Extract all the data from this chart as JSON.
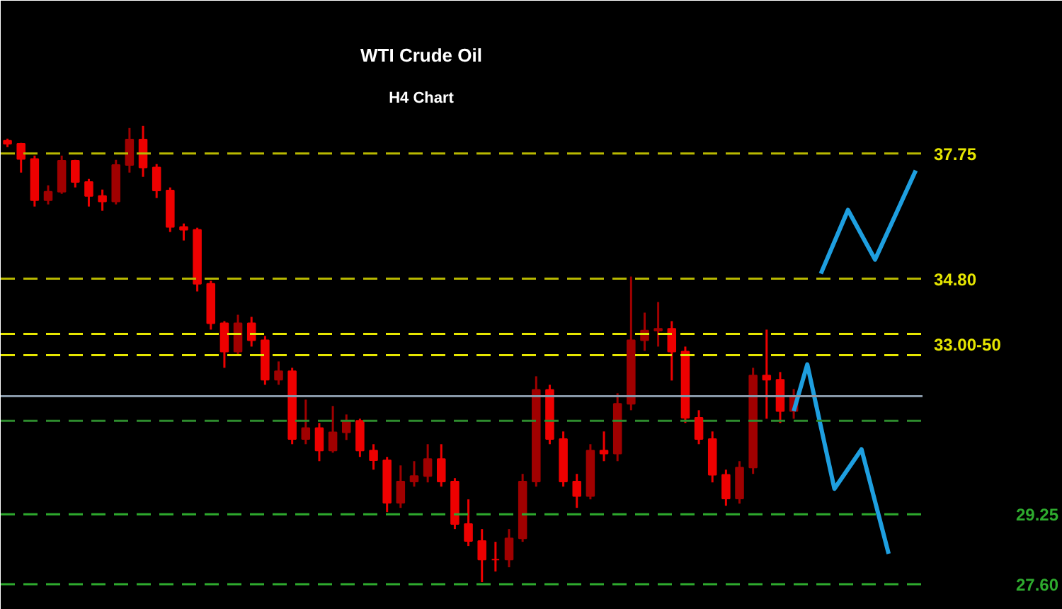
{
  "chart_data": {
    "type": "candlestick",
    "title": "WTI Crude Oil",
    "subtitle": "H4 Chart",
    "categories": [
      null,
      null,
      null,
      null,
      null,
      null,
      null,
      null,
      null,
      null,
      null,
      null,
      null,
      null,
      null,
      null,
      null,
      null,
      null,
      null,
      null,
      null,
      null,
      null,
      null,
      null,
      null,
      null,
      null,
      null,
      null,
      null,
      null,
      null,
      null,
      null,
      null,
      null,
      null,
      null,
      null,
      null,
      null,
      null,
      null,
      null,
      null,
      null,
      null,
      null,
      null,
      null,
      null,
      null,
      null,
      null,
      null,
      null,
      null,
      null,
      null,
      null,
      null,
      null,
      null,
      null,
      null,
      null
    ],
    "ohlc": [
      [
        38.05,
        38.1,
        37.9,
        37.98
      ],
      [
        37.98,
        38.0,
        37.3,
        37.62
      ],
      [
        37.62,
        37.7,
        36.5,
        36.65
      ],
      [
        36.65,
        37.0,
        36.55,
        36.85
      ],
      [
        36.85,
        37.7,
        36.8,
        37.58
      ],
      [
        37.58,
        37.6,
        36.95,
        37.08
      ],
      [
        37.08,
        37.15,
        36.5,
        36.75
      ],
      [
        36.75,
        36.9,
        36.4,
        36.62
      ],
      [
        36.62,
        37.6,
        36.55,
        37.48
      ],
      [
        37.48,
        38.35,
        37.3,
        38.08
      ],
      [
        38.08,
        38.4,
        37.2,
        37.42
      ],
      [
        37.42,
        37.5,
        36.7,
        36.88
      ],
      [
        36.88,
        36.95,
        35.9,
        36.02
      ],
      [
        36.02,
        36.1,
        35.7,
        35.95
      ],
      [
        35.95,
        36.0,
        34.5,
        34.68
      ],
      [
        34.68,
        34.75,
        33.6,
        33.75
      ],
      [
        33.75,
        33.8,
        32.7,
        33.08
      ],
      [
        33.08,
        33.95,
        33.0,
        33.75
      ],
      [
        33.75,
        33.9,
        33.2,
        33.35
      ],
      [
        33.35,
        33.45,
        32.3,
        32.42
      ],
      [
        32.42,
        32.85,
        32.3,
        32.62
      ],
      [
        32.62,
        32.7,
        30.9,
        31.02
      ],
      [
        31.02,
        31.95,
        30.9,
        31.28
      ],
      [
        31.28,
        31.4,
        30.5,
        30.75
      ],
      [
        30.75,
        31.8,
        30.7,
        31.18
      ],
      [
        31.18,
        31.6,
        31.0,
        31.45
      ],
      [
        31.45,
        31.5,
        30.6,
        30.75
      ],
      [
        30.75,
        30.9,
        30.3,
        30.52
      ],
      [
        30.52,
        30.6,
        29.3,
        29.52
      ],
      [
        29.52,
        30.4,
        29.4,
        30.02
      ],
      [
        30.02,
        30.5,
        29.9,
        30.15
      ],
      [
        30.15,
        30.9,
        30.0,
        30.55
      ],
      [
        30.55,
        30.9,
        29.9,
        30.02
      ],
      [
        30.02,
        30.1,
        28.9,
        29.02
      ],
      [
        29.02,
        29.6,
        28.5,
        28.62
      ],
      [
        28.62,
        28.9,
        27.65,
        28.18
      ],
      [
        28.18,
        28.6,
        27.9,
        28.18
      ],
      [
        28.18,
        28.9,
        28.0,
        28.68
      ],
      [
        28.68,
        30.2,
        28.6,
        30.02
      ],
      [
        30.02,
        32.5,
        29.9,
        32.18
      ],
      [
        32.18,
        32.3,
        30.9,
        31.02
      ],
      [
        31.02,
        31.2,
        29.9,
        30.02
      ],
      [
        30.02,
        30.2,
        29.4,
        29.68
      ],
      [
        29.68,
        30.9,
        29.6,
        30.75
      ],
      [
        30.75,
        31.2,
        30.5,
        30.68
      ],
      [
        30.68,
        32.1,
        30.5,
        31.85
      ],
      [
        31.85,
        34.85,
        31.7,
        33.35
      ],
      [
        33.35,
        34.0,
        33.1,
        33.58
      ],
      [
        33.58,
        34.25,
        33.2,
        33.62
      ],
      [
        33.62,
        33.8,
        32.4,
        33.08
      ],
      [
        33.08,
        33.2,
        31.4,
        31.52
      ],
      [
        31.52,
        31.7,
        30.9,
        31.02
      ],
      [
        31.02,
        31.2,
        30.0,
        30.18
      ],
      [
        30.18,
        30.3,
        29.45,
        29.62
      ],
      [
        29.62,
        30.5,
        29.5,
        30.35
      ],
      [
        30.35,
        32.7,
        30.2,
        32.52
      ],
      [
        32.52,
        33.6,
        31.5,
        32.42
      ],
      [
        32.42,
        32.6,
        31.4,
        31.68
      ],
      [
        31.68,
        32.2,
        31.5,
        32.02
      ],
      null,
      null,
      null,
      null,
      null,
      null,
      null,
      null,
      null
    ],
    "colors": [
      "#ee0000",
      "#ee0000",
      "#ee0000",
      "#a00000",
      "#a00000",
      "#ee0000",
      "#ee0000",
      "#ee0000",
      "#a00000",
      "#a00000",
      "#ee0000",
      "#ee0000",
      "#ee0000",
      "#ee0000",
      "#ee0000",
      "#ee0000",
      "#ee0000",
      "#a00000",
      "#ee0000",
      "#ee0000",
      "#a00000",
      "#ee0000",
      "#a00000",
      "#ee0000",
      "#a00000",
      "#a00000",
      "#ee0000",
      "#ee0000",
      "#ee0000",
      "#a00000",
      "#a00000",
      "#a00000",
      "#ee0000",
      "#ee0000",
      "#ee0000",
      "#ee0000",
      "#ee0000",
      "#a00000",
      "#a00000",
      "#a00000",
      "#ee0000",
      "#ee0000",
      "#ee0000",
      "#a00000",
      "#ee0000",
      "#a00000",
      "#a00000",
      "#a00000",
      "#a00000",
      "#ee0000",
      "#ee0000",
      "#ee0000",
      "#ee0000",
      "#ee0000",
      "#a00000",
      "#a00000",
      "#ee0000",
      "#ee0000",
      "#a00000",
      null,
      null,
      null,
      null,
      null,
      null,
      null,
      null,
      null
    ],
    "series": [
      {
        "type": "line",
        "color": "#1e9fe0",
        "values": [
          null,
          null,
          null,
          null,
          null,
          null,
          null,
          null,
          null,
          null,
          null,
          null,
          null,
          null,
          null,
          null,
          null,
          null,
          null,
          null,
          null,
          null,
          null,
          null,
          null,
          null,
          null,
          null,
          null,
          null,
          null,
          null,
          null,
          null,
          null,
          null,
          null,
          null,
          null,
          null,
          null,
          null,
          null,
          null,
          null,
          null,
          null,
          null,
          null,
          null,
          null,
          null,
          null,
          null,
          null,
          null,
          null,
          null,
          null,
          null,
          34.92,
          null,
          36.42,
          null,
          35.25,
          null,
          null,
          37.35
        ]
      },
      {
        "type": "line",
        "color": "#1e9fe0",
        "values": [
          null,
          null,
          null,
          null,
          null,
          null,
          null,
          null,
          null,
          null,
          null,
          null,
          null,
          null,
          null,
          null,
          null,
          null,
          null,
          null,
          null,
          null,
          null,
          null,
          null,
          null,
          null,
          null,
          null,
          null,
          null,
          null,
          null,
          null,
          null,
          null,
          null,
          null,
          null,
          null,
          null,
          null,
          null,
          null,
          null,
          null,
          null,
          null,
          null,
          null,
          null,
          null,
          null,
          null,
          null,
          null,
          null,
          null,
          31.68,
          32.78,
          null,
          29.85,
          null,
          30.78,
          null,
          28.32,
          null,
          null
        ]
      }
    ],
    "ref_lines": [
      {
        "axis": "y",
        "value": 37.75,
        "color": "#b8b800",
        "line_style": "dashed"
      },
      {
        "axis": "y",
        "value": 34.8,
        "color": "#b8b800",
        "line_style": "dashed"
      },
      {
        "axis": "y",
        "value": 33.5,
        "color": "#e6e600",
        "line_style": "dashed"
      },
      {
        "axis": "y",
        "value": 33.0,
        "color": "#e6e600",
        "line_style": "dashed"
      },
      {
        "axis": "y",
        "value": 32.03,
        "color": "#8898a8",
        "line_style": "solid"
      },
      {
        "axis": "y",
        "value": 31.45,
        "color": "#2e8b2e",
        "line_style": "dashed"
      },
      {
        "axis": "y",
        "value": 29.25,
        "color": "#2eaa2e",
        "line_style": "dashed"
      },
      {
        "axis": "y",
        "value": 27.6,
        "color": "#2eaa2e",
        "line_style": "dashed"
      }
    ],
    "ylim": [
      27.0,
      41.35
    ],
    "yticks": [
      37.75,
      {
        "value": 34.8,
        "label": "34.80"
      },
      {
        "value": 33.25,
        "label": "33.00-50"
      }
    ],
    "y2lim": [
      27.0,
      41.35
    ],
    "y2ticks": [
      29.25,
      {
        "value": 27.6,
        "label": "27.60"
      }
    ],
    "tick_labels": "y",
    "grid": false
  }
}
